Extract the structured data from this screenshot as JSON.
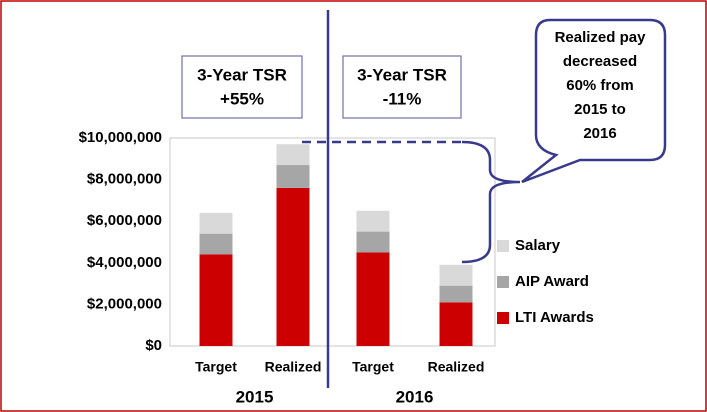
{
  "chart_data": {
    "type": "stacked_bar",
    "categories": [
      "Target",
      "Realized",
      "Target",
      "Realized"
    ],
    "groups": [
      "2015",
      "2016"
    ],
    "series": [
      {
        "name": "LTI Awards",
        "color": "#cc0000",
        "values": [
          4400000,
          7600000,
          4500000,
          2100000
        ]
      },
      {
        "name": "AIP Award",
        "color": "#a6a6a6",
        "values": [
          1000000,
          1100000,
          1000000,
          800000
        ]
      },
      {
        "name": "Salary",
        "color": "#d9d9d9",
        "values": [
          1000000,
          1000000,
          1000000,
          1000000
        ]
      }
    ],
    "ylim": [
      0,
      10000000
    ],
    "yticks": [
      {
        "value": 0,
        "label": "$0"
      },
      {
        "value": 2000000,
        "label": "$2,000,000"
      },
      {
        "value": 4000000,
        "label": "$4,000,000"
      },
      {
        "value": 6000000,
        "label": "$6,000,000"
      },
      {
        "value": 8000000,
        "label": "$8,000,000"
      },
      {
        "value": 10000000,
        "label": "$10,000,000"
      }
    ],
    "grid": false,
    "legend": "right",
    "annotations": [
      {
        "lines": [
          "3-Year TSR",
          "+55%"
        ]
      },
      {
        "lines": [
          "3-Year TSR",
          "-11%"
        ]
      }
    ],
    "callout": {
      "lines": [
        "Realized pay",
        "decreased",
        "60% from",
        "2015 to",
        "2016"
      ]
    }
  }
}
